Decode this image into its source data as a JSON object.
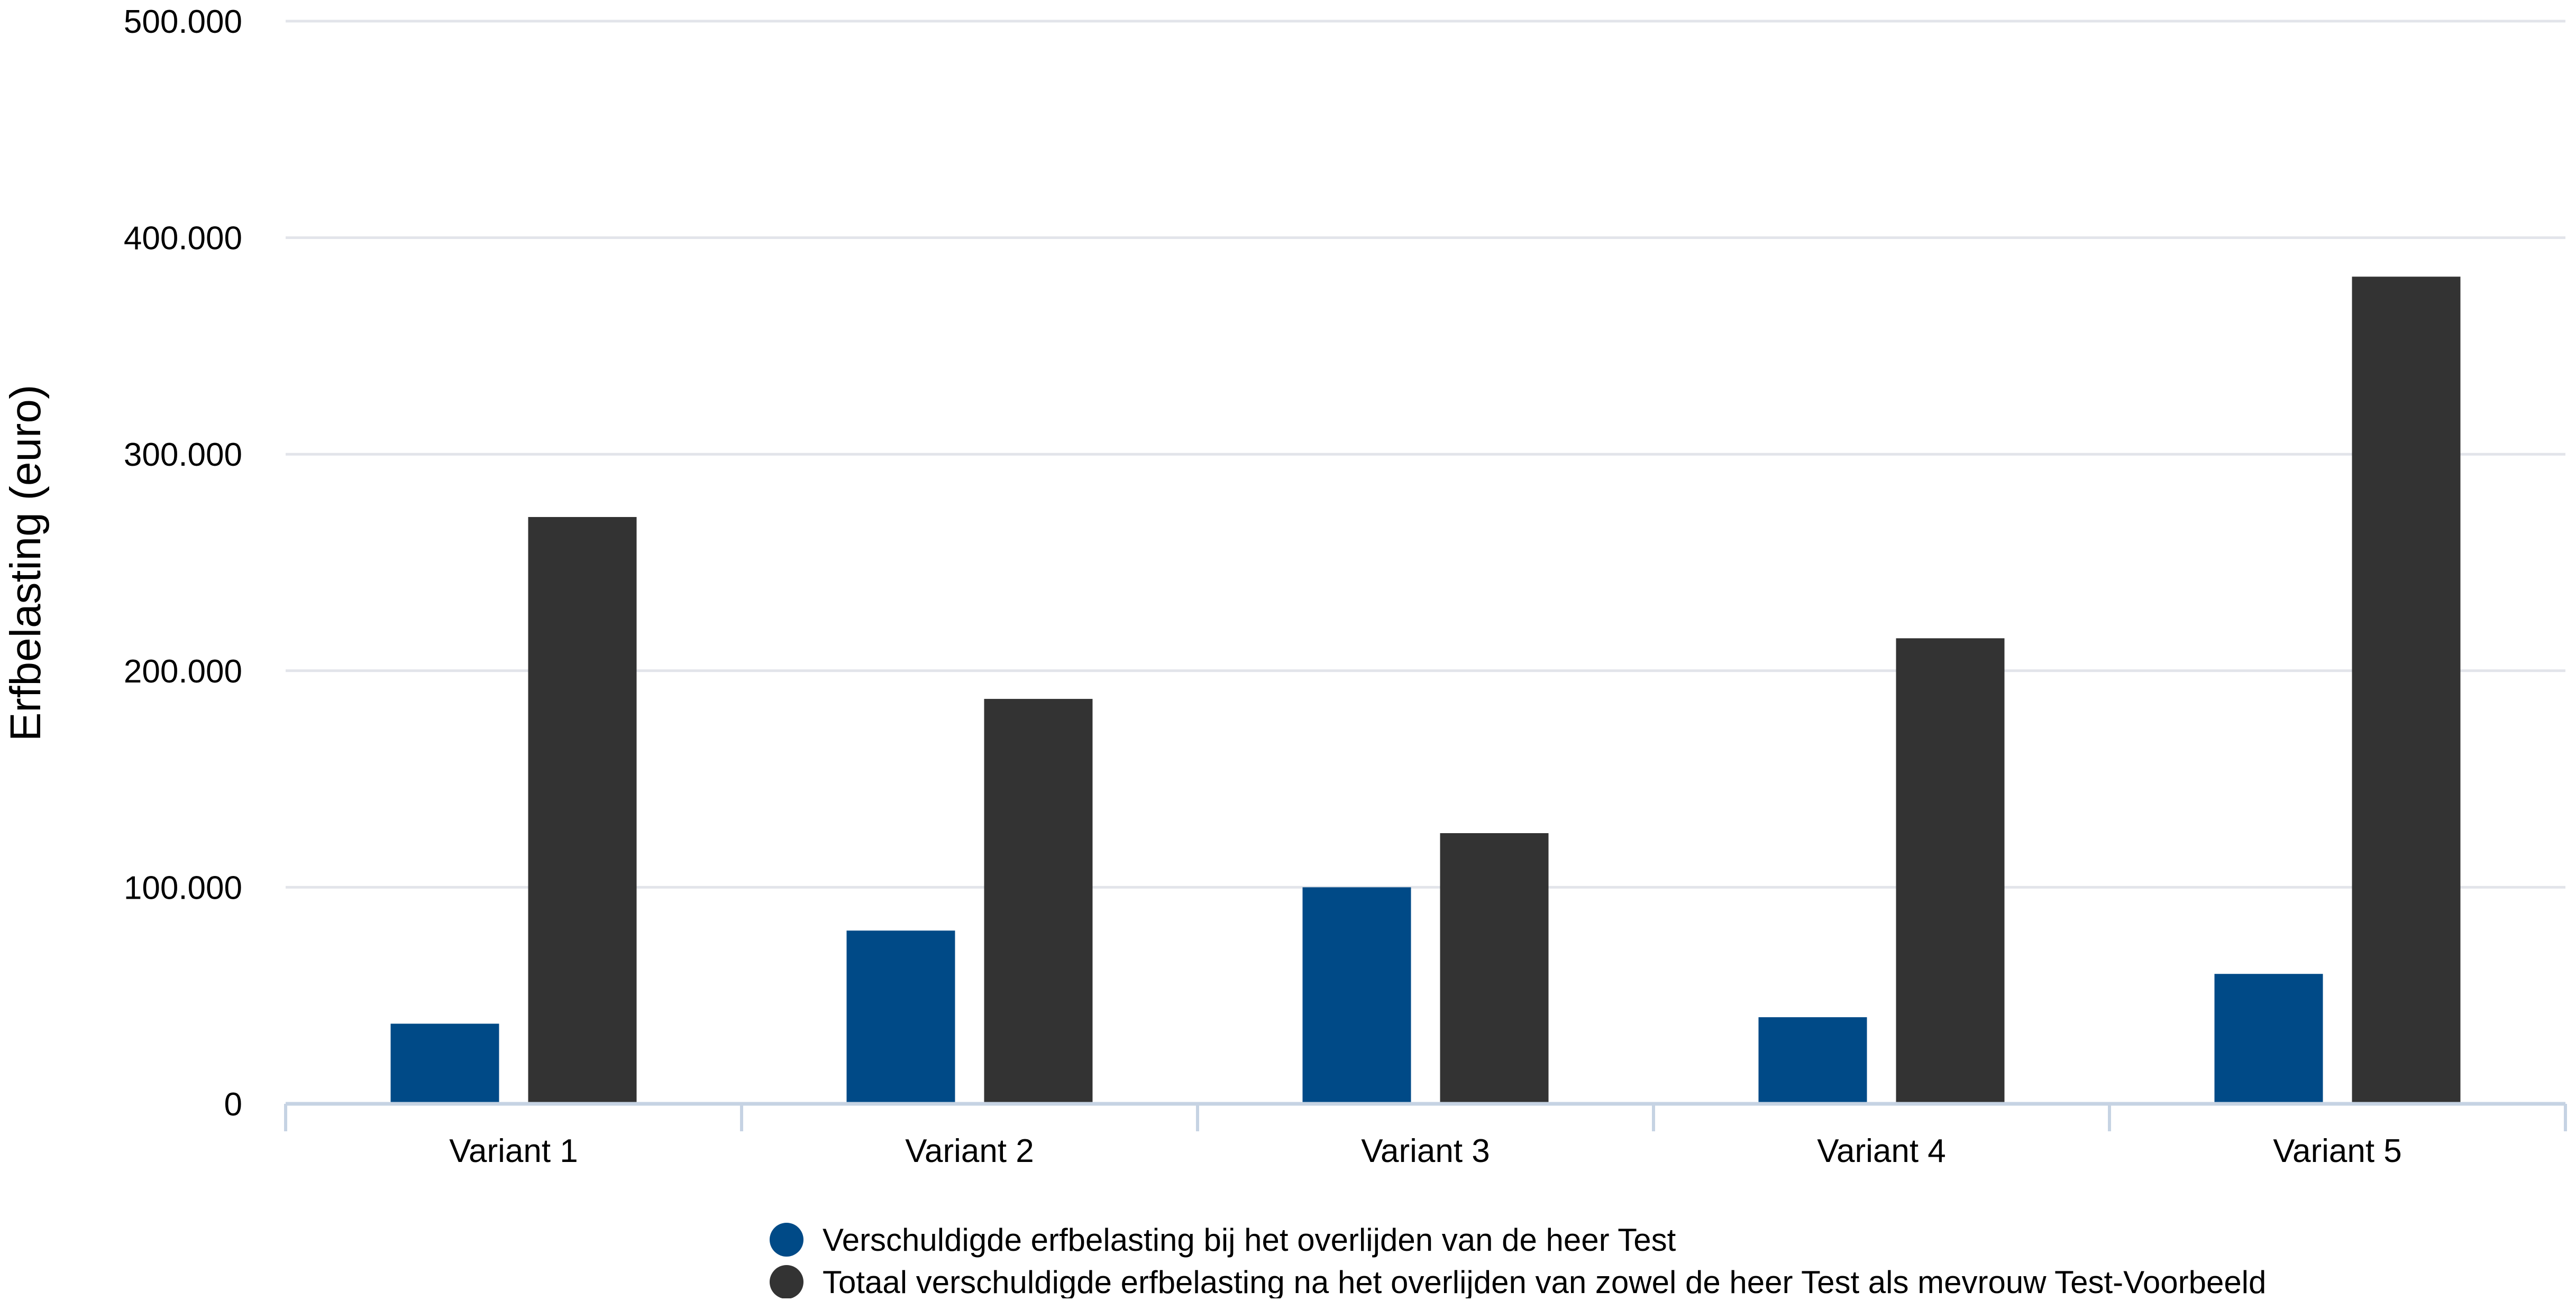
{
  "chart_data": {
    "type": "bar",
    "title": "",
    "xlabel": "",
    "ylabel": "Erfbelasting (euro)",
    "ylim": [
      0,
      500000
    ],
    "yticks": [
      "0",
      "100.000",
      "200.000",
      "300.000",
      "400.000",
      "500.000"
    ],
    "grid": true,
    "legend_position": "bottom",
    "categories": [
      "Variant 1",
      "Variant 2",
      "Variant 3",
      "Variant 4",
      "Variant 5"
    ],
    "series": [
      {
        "name": "Verschuldigde erfbelasting bij het overlijden van de heer Test",
        "color": "#004a87",
        "values": [
          37000,
          80000,
          100000,
          40000,
          60000
        ]
      },
      {
        "name": "Totaal verschuldigde erfbelasting na het overlijden van zowel de heer Test als mevrouw Test-Voorbeeld",
        "color": "#333333",
        "values": [
          271000,
          187000,
          125000,
          215000,
          382000
        ]
      }
    ]
  }
}
